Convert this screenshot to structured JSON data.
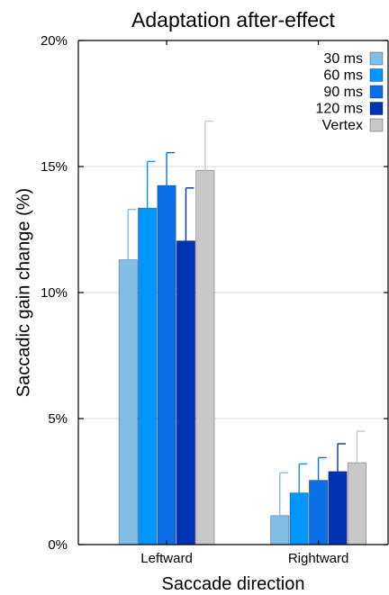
{
  "chart_data": {
    "type": "bar",
    "title": "Adaptation after-effect",
    "xlabel": "Saccade direction",
    "ylabel": "Saccadic gain change (%)",
    "ylim": [
      0,
      20
    ],
    "yticks": [
      0,
      5,
      10,
      15,
      20
    ],
    "ytick_labels": [
      "0%",
      "5%",
      "10%",
      "15%",
      "20%"
    ],
    "grid": "horizontal",
    "legend_position": "top-right",
    "categories": [
      "Leftward",
      "Rightward"
    ],
    "series": [
      {
        "name": "30 ms",
        "color": "#82bde6",
        "values": [
          11.3,
          1.15
        ],
        "errors": [
          2.0,
          1.7
        ]
      },
      {
        "name": "60 ms",
        "color": "#0096ff",
        "values": [
          13.35,
          2.05
        ],
        "errors": [
          1.85,
          1.15
        ]
      },
      {
        "name": "90 ms",
        "color": "#0a6ee6",
        "values": [
          14.25,
          2.55
        ],
        "errors": [
          1.3,
          0.9
        ]
      },
      {
        "name": "120 ms",
        "color": "#0032b4",
        "values": [
          12.05,
          2.9
        ],
        "errors": [
          2.1,
          1.1
        ]
      },
      {
        "name": "Vertex",
        "color": "#c8c8c8",
        "values": [
          14.85,
          3.25
        ],
        "errors": [
          1.95,
          1.25
        ]
      }
    ]
  }
}
